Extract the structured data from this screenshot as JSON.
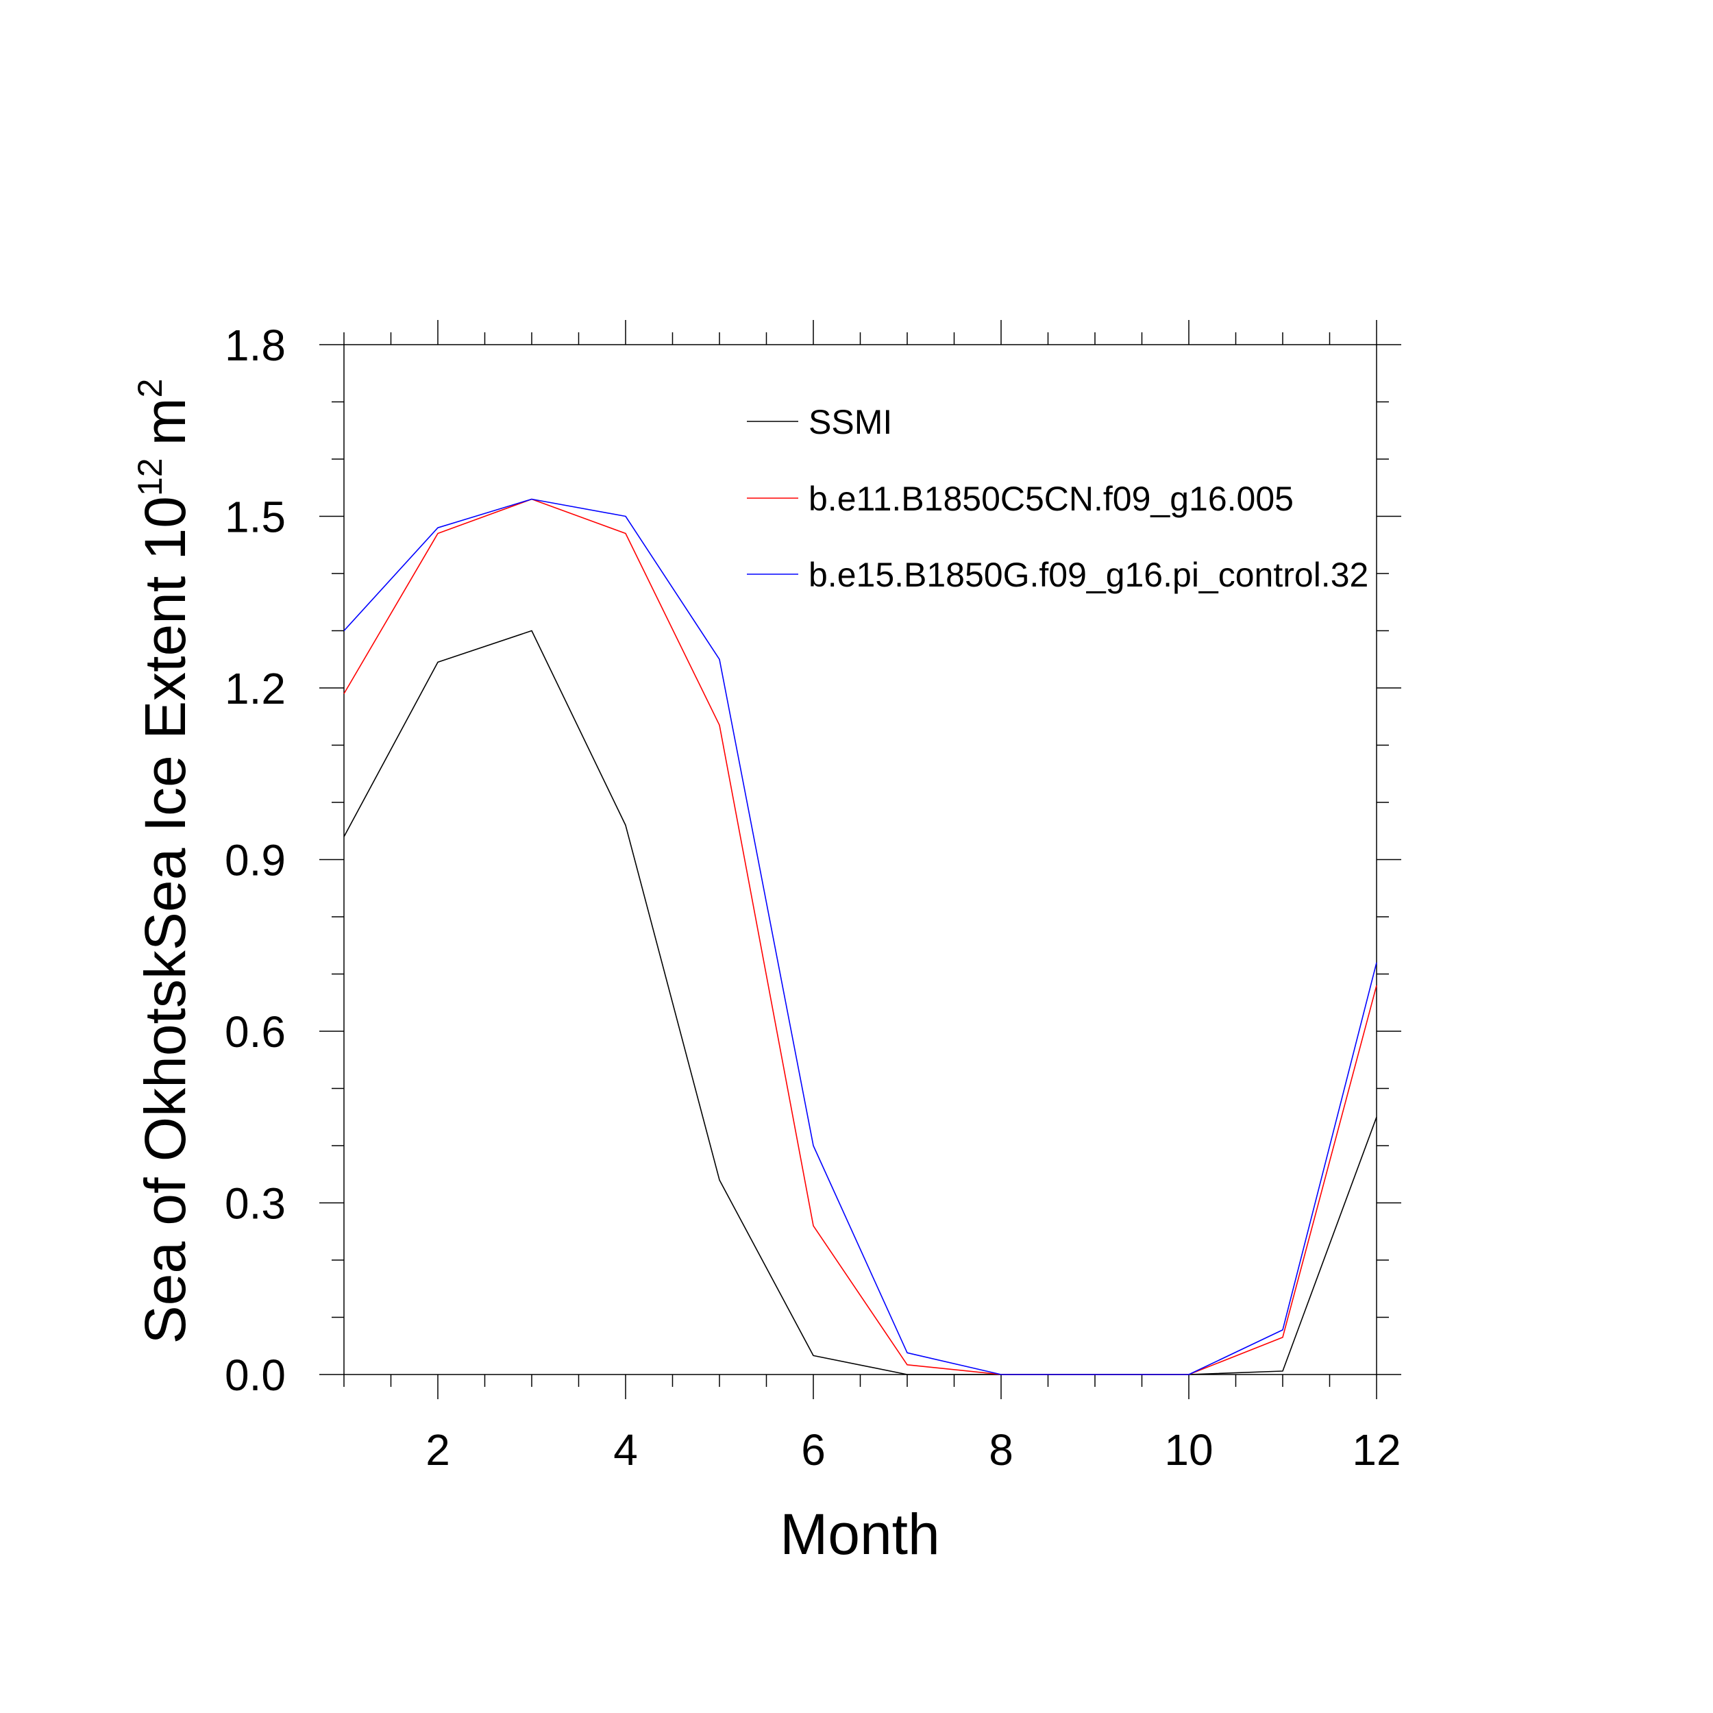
{
  "chart_data": {
    "type": "line",
    "title": "",
    "xlabel": "Month",
    "ylabel": {
      "text": "Sea of OkhotskSea Ice Extent 10",
      "exponent": "12",
      "unit": "m",
      "unit_exponent": "2"
    },
    "xlim": [
      1,
      12
    ],
    "ylim": [
      0,
      1.8
    ],
    "x_ticks": [
      2,
      4,
      6,
      8,
      10,
      12
    ],
    "y_ticks": [
      "0.0",
      "0.3",
      "0.6",
      "0.9",
      "1.2",
      "1.5",
      "1.8"
    ],
    "grid": false,
    "legend_position": "top-right",
    "x": [
      1,
      2,
      3,
      4,
      5,
      6,
      7,
      8,
      9,
      10,
      11,
      12
    ],
    "series": [
      {
        "name": "SSMI",
        "color": "#000000",
        "values": [
          0.94,
          1.245,
          1.3,
          0.96,
          0.34,
          0.033,
          0.0,
          0.0,
          0.0,
          0.0,
          0.006,
          0.45
        ]
      },
      {
        "name": "b.e11.B1850C5CN.f09_g16.005",
        "color": "#ff0000",
        "values": [
          1.19,
          1.47,
          1.53,
          1.47,
          1.135,
          0.26,
          0.017,
          0.0,
          0.0,
          0.0,
          0.065,
          0.68
        ]
      },
      {
        "name": "b.e15.B1850G.f09_g16.pi_control.32",
        "color": "#0000ff",
        "values": [
          1.3,
          1.48,
          1.53,
          1.5,
          1.25,
          0.4,
          0.038,
          0.0,
          0.0,
          0.0,
          0.078,
          0.72
        ]
      }
    ]
  }
}
